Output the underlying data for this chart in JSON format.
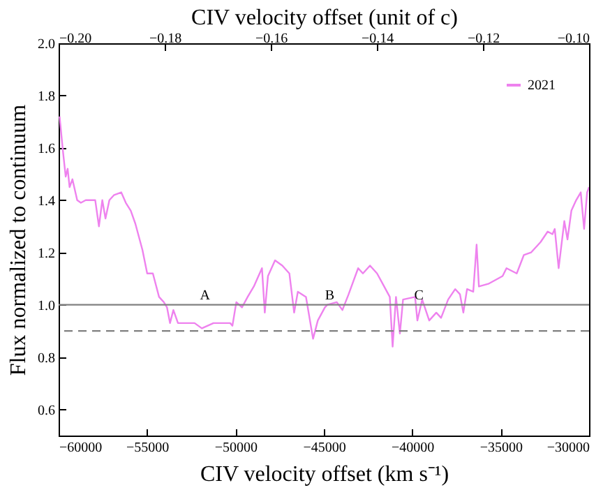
{
  "chart_data": {
    "type": "line",
    "xlabel": "CIV velocity offset (km s⁻¹)",
    "x2label": "CIV velocity offset (unit of c)",
    "ylabel": "Flux normalized to continuum",
    "xlim": [
      -60000,
      -30000
    ],
    "xticks": [
      {
        "value": -60000,
        "label": "−60000"
      },
      {
        "value": -55000,
        "label": "−55000"
      },
      {
        "value": -50000,
        "label": "−50000"
      },
      {
        "value": -45000,
        "label": "−45000"
      },
      {
        "value": -40000,
        "label": "−40000"
      },
      {
        "value": -35000,
        "label": "−35000"
      },
      {
        "value": -30000,
        "label": "−30000"
      }
    ],
    "x2lim": [
      -0.2,
      -0.1
    ],
    "x2ticks": [
      {
        "value": -0.2,
        "label": "−0.20"
      },
      {
        "value": -0.18,
        "label": "−0.18"
      },
      {
        "value": -0.16,
        "label": "−0.16"
      },
      {
        "value": -0.14,
        "label": "−0.14"
      },
      {
        "value": -0.12,
        "label": "−0.12"
      },
      {
        "value": -0.1,
        "label": "−0.10"
      }
    ],
    "ylim": [
      0.5,
      2.0
    ],
    "yticks": [
      {
        "value": 0.6,
        "label": "0.6"
      },
      {
        "value": 0.8,
        "label": "0.8"
      },
      {
        "value": 1.0,
        "label": "1.0"
      },
      {
        "value": 1.2,
        "label": "1.2"
      },
      {
        "value": 1.4,
        "label": "1.4"
      },
      {
        "value": 1.6,
        "label": "1.6"
      },
      {
        "value": 1.8,
        "label": "1.8"
      },
      {
        "value": 2.0,
        "label": "2.0"
      }
    ],
    "legend": "top right",
    "grid": false,
    "ref_lines": [
      {
        "axis": "y",
        "value": 1.0,
        "color": "#808080",
        "line_style": "solid"
      },
      {
        "axis": "y",
        "value": 0.9,
        "color": "#808080",
        "line_style": "dashed"
      }
    ],
    "annotations": [
      {
        "text": "A",
        "x": -51720,
        "y": 1.01
      },
      {
        "text": "B",
        "x": -44670,
        "y": 1.01
      },
      {
        "text": "C",
        "x": -39630,
        "y": 1.01
      }
    ],
    "series": [
      {
        "name": "2021",
        "color": "#ee82ee",
        "x": [
          -59945,
          -59760,
          -59600,
          -59490,
          -59380,
          -59220,
          -58950,
          -58740,
          -58470,
          -57930,
          -57720,
          -57530,
          -57350,
          -57130,
          -56860,
          -56460,
          -56200,
          -55920,
          -55660,
          -55260,
          -54990,
          -54670,
          -54320,
          -54050,
          -53870,
          -53700,
          -53510,
          -53250,
          -52840,
          -52310,
          -51900,
          -51240,
          -50700,
          -50300,
          -50170,
          -49950,
          -49630,
          -49310,
          -48960,
          -48500,
          -48340,
          -48160,
          -47760,
          -47350,
          -46950,
          -46680,
          -46470,
          -46010,
          -45610,
          -45340,
          -44940,
          -44800,
          -44270,
          -43950,
          -43600,
          -43060,
          -42790,
          -42390,
          -41990,
          -41590,
          -41270,
          -41110,
          -40920,
          -40700,
          -40520,
          -39840,
          -39710,
          -39440,
          -39040,
          -38640,
          -38370,
          -37970,
          -37570,
          -37300,
          -37110,
          -36900,
          -36550,
          -36360,
          -36230,
          -35700,
          -34890,
          -34670,
          -34090,
          -33690,
          -33280,
          -32740,
          -32340,
          -32070,
          -31940,
          -31720,
          -31400,
          -31220,
          -31000,
          -30730,
          -30470,
          -30280,
          -30110,
          -30000
        ],
        "values": [
          1.72,
          1.59,
          1.49,
          1.52,
          1.45,
          1.48,
          1.4,
          1.39,
          1.4,
          1.4,
          1.3,
          1.4,
          1.33,
          1.4,
          1.42,
          1.43,
          1.39,
          1.36,
          1.31,
          1.21,
          1.12,
          1.12,
          1.03,
          1.01,
          0.99,
          0.93,
          0.98,
          0.93,
          0.93,
          0.93,
          0.91,
          0.93,
          0.93,
          0.93,
          0.92,
          1.01,
          0.99,
          1.03,
          1.07,
          1.14,
          0.97,
          1.11,
          1.17,
          1.15,
          1.12,
          0.97,
          1.05,
          1.03,
          0.87,
          0.94,
          0.99,
          1.0,
          1.01,
          0.98,
          1.04,
          1.14,
          1.12,
          1.15,
          1.12,
          1.07,
          1.03,
          0.84,
          1.03,
          0.89,
          1.02,
          1.03,
          0.94,
          1.02,
          0.94,
          0.97,
          0.95,
          1.02,
          1.06,
          1.04,
          0.97,
          1.06,
          1.05,
          1.23,
          1.07,
          1.08,
          1.11,
          1.14,
          1.12,
          1.19,
          1.2,
          1.24,
          1.28,
          1.27,
          1.29,
          1.14,
          1.32,
          1.25,
          1.36,
          1.4,
          1.43,
          1.29,
          1.43,
          1.45
        ]
      }
    ]
  }
}
